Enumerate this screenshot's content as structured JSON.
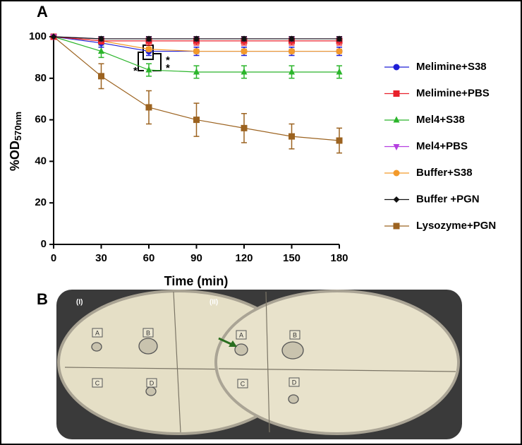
{
  "chart_data": {
    "type": "line",
    "panel_label": "A",
    "x_label": "Time (min)",
    "y_label": "%OD",
    "y_label_sub": "570nm",
    "x": [
      0,
      30,
      60,
      90,
      120,
      150,
      180
    ],
    "xlim": [
      0,
      180
    ],
    "xticks": [
      0,
      30,
      60,
      90,
      120,
      150,
      180
    ],
    "ylim": [
      0,
      100
    ],
    "yticks": [
      0,
      20,
      40,
      60,
      80,
      100
    ],
    "series": [
      {
        "name": "Melimine+S38",
        "color": "#1f1fd6",
        "marker": "circle",
        "values": [
          100,
          97,
          93,
          93,
          93,
          93,
          93
        ],
        "errors": [
          0,
          2,
          2,
          2,
          2,
          2,
          2
        ]
      },
      {
        "name": "Melimine+PBS",
        "color": "#e8212b",
        "marker": "square",
        "values": [
          100,
          98,
          98,
          98,
          98,
          98,
          98
        ],
        "errors": [
          0,
          1.5,
          2,
          2,
          2,
          2,
          2
        ]
      },
      {
        "name": "Mel4+S38",
        "color": "#2bb52b",
        "marker": "triangle",
        "values": [
          100,
          93,
          84,
          83,
          83,
          83,
          83
        ],
        "errors": [
          0,
          3,
          3,
          3,
          3,
          3,
          3
        ]
      },
      {
        "name": "Mel4+PBS",
        "color": "#b540e0",
        "marker": "triangle-down",
        "values": [
          100,
          99,
          99,
          99,
          99,
          99,
          99
        ],
        "errors": [
          0,
          1,
          1,
          1,
          1,
          1,
          1
        ]
      },
      {
        "name": "Buffer+S38",
        "color": "#f39a2b",
        "marker": "circle",
        "values": [
          100,
          98,
          94,
          93,
          93,
          93,
          93
        ],
        "errors": [
          0,
          1,
          1,
          1,
          1,
          1,
          1
        ]
      },
      {
        "name": "Buffer +PGN",
        "color": "#111111",
        "marker": "diamond",
        "values": [
          100,
          99,
          99,
          99,
          99,
          99,
          99
        ],
        "errors": [
          0,
          1,
          1,
          1,
          1,
          1,
          1
        ]
      },
      {
        "name": "Lysozyme+PGN",
        "color": "#9c6320",
        "marker": "square",
        "values": [
          100,
          81,
          66,
          60,
          56,
          52,
          50
        ],
        "errors": [
          0,
          6,
          8,
          8,
          7,
          6,
          6
        ]
      }
    ],
    "annotations": [
      "*",
      "*",
      "*"
    ]
  },
  "photo": {
    "panel_label": "B",
    "plates": [
      {
        "label": "(I)",
        "quadrants": [
          "A",
          "B",
          "C",
          "D"
        ]
      },
      {
        "label": "(II)",
        "quadrants": [
          "A",
          "B",
          "C",
          "D"
        ]
      }
    ]
  }
}
